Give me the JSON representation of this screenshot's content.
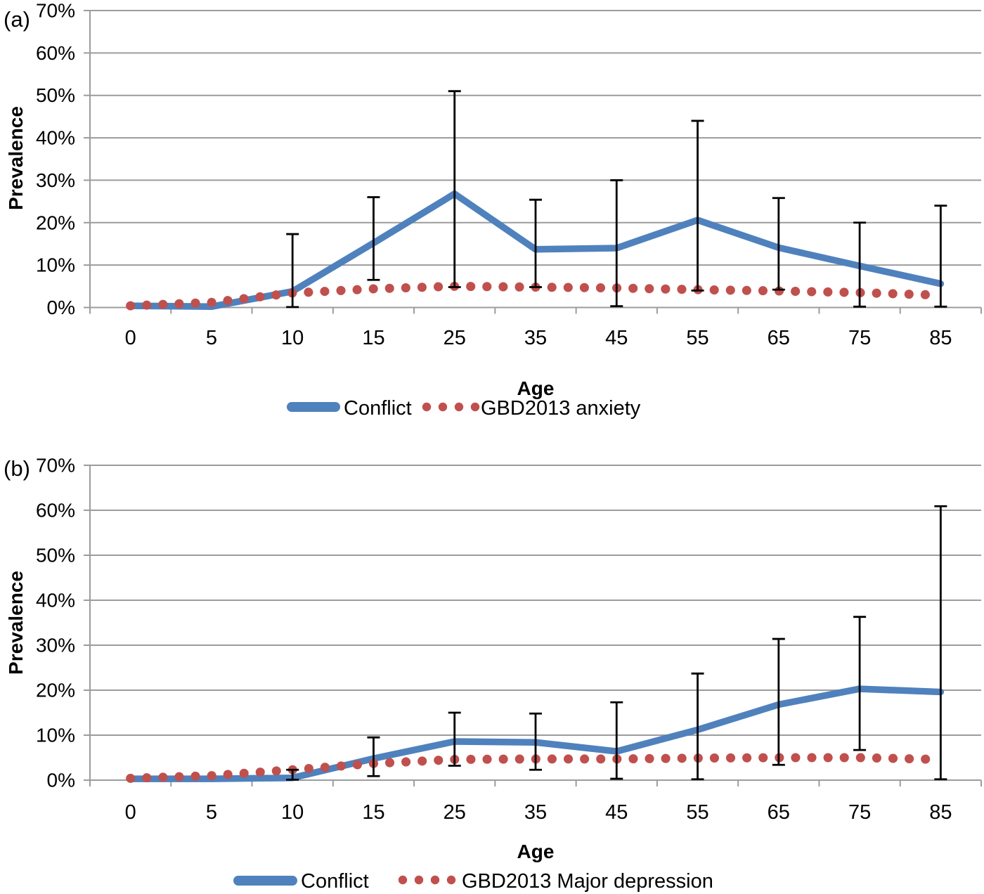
{
  "figure_type": "two-panel prevalence line chart with error bars",
  "colors": {
    "conflict_line": "#4F81BD",
    "gbd_dots": "#C0504D",
    "error_bar": "#000000",
    "gridline": "#9C9C9C",
    "text": "#000000",
    "background": "#FFFFFF"
  },
  "chart_data": [
    {
      "type": "line",
      "panel_label": "(a)",
      "title": "",
      "xlabel": "Age",
      "ylabel": "Prevalence",
      "ylim": [
        0,
        70
      ],
      "grid": true,
      "legend_position": "bottom",
      "y_tick_labels": [
        "0%",
        "10%",
        "20%",
        "30%",
        "40%",
        "50%",
        "60%",
        "70%"
      ],
      "categories": [
        "0",
        "5",
        "10",
        "15",
        "25",
        "35",
        "45",
        "55",
        "65",
        "75",
        "85"
      ],
      "series": [
        {
          "name": "Conflict",
          "style": "solid",
          "color": "#4F81BD",
          "values": [
            0.4,
            0.2,
            3.8,
            15.2,
            26.8,
            13.7,
            14.0,
            20.6,
            14.1,
            9.8,
            5.6
          ]
        },
        {
          "name": "GBD2013 anxiety",
          "style": "dotted",
          "color": "#C0504D",
          "values": [
            0.4,
            1.2,
            3.4,
            4.4,
            5.0,
            4.8,
            4.6,
            4.2,
            3.9,
            3.5,
            2.9
          ]
        }
      ],
      "error_bars": {
        "series": "Conflict",
        "color": "#000000",
        "points": [
          {
            "x": "10",
            "low": 0.1,
            "high": 17.3
          },
          {
            "x": "15",
            "low": 6.5,
            "high": 26.0
          },
          {
            "x": "25",
            "low": 4.8,
            "high": 51.0
          },
          {
            "x": "35",
            "low": 4.8,
            "high": 25.4
          },
          {
            "x": "45",
            "low": 0.3,
            "high": 30.0
          },
          {
            "x": "55",
            "low": 4.0,
            "high": 44.0
          },
          {
            "x": "65",
            "low": 4.2,
            "high": 25.8
          },
          {
            "x": "75",
            "low": 0.2,
            "high": 20.0
          },
          {
            "x": "85",
            "low": 0.2,
            "high": 24.0
          }
        ]
      }
    },
    {
      "type": "line",
      "panel_label": "(b)",
      "title": "",
      "xlabel": "Age",
      "ylabel": "Prevalence",
      "ylim": [
        0,
        70
      ],
      "grid": true,
      "legend_position": "bottom",
      "y_tick_labels": [
        "0%",
        "10%",
        "20%",
        "30%",
        "40%",
        "50%",
        "60%",
        "70%"
      ],
      "categories": [
        "0",
        "5",
        "10",
        "15",
        "25",
        "35",
        "45",
        "55",
        "65",
        "75",
        "85"
      ],
      "series": [
        {
          "name": "Conflict",
          "style": "solid",
          "color": "#4F81BD",
          "values": [
            0.3,
            0.3,
            0.5,
            4.8,
            8.6,
            8.4,
            6.4,
            11.2,
            16.8,
            20.3,
            19.6
          ]
        },
        {
          "name": "GBD2013 Major depression",
          "style": "dotted",
          "color": "#C0504D",
          "values": [
            0.4,
            1.0,
            2.3,
            3.7,
            4.6,
            4.7,
            4.7,
            4.9,
            5.0,
            5.0,
            4.6
          ]
        }
      ],
      "error_bars": {
        "series": "Conflict",
        "color": "#000000",
        "points": [
          {
            "x": "10",
            "low": 0.1,
            "high": 2.3
          },
          {
            "x": "15",
            "low": 0.9,
            "high": 9.5
          },
          {
            "x": "25",
            "low": 3.2,
            "high": 15.0
          },
          {
            "x": "35",
            "low": 2.3,
            "high": 14.8
          },
          {
            "x": "45",
            "low": 0.3,
            "high": 17.3
          },
          {
            "x": "55",
            "low": 0.2,
            "high": 23.7
          },
          {
            "x": "65",
            "low": 3.4,
            "high": 31.4
          },
          {
            "x": "75",
            "low": 6.7,
            "high": 36.3
          },
          {
            "x": "85",
            "low": 0.2,
            "high": 60.9
          }
        ]
      }
    }
  ]
}
